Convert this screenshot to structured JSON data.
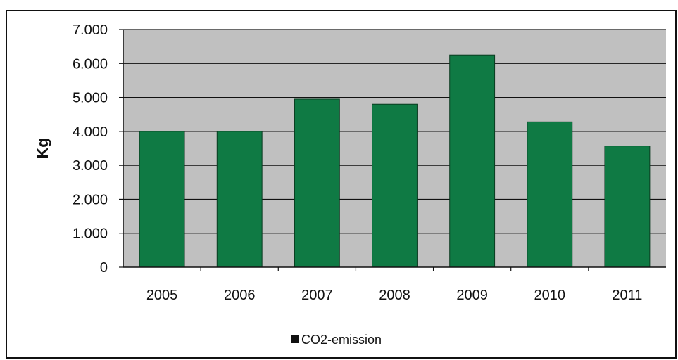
{
  "chart_data": {
    "type": "bar",
    "title": "",
    "xlabel": "",
    "ylabel": "Kg",
    "categories": [
      "2005",
      "2006",
      "2007",
      "2008",
      "2009",
      "2010",
      "2011"
    ],
    "series": [
      {
        "name": "CO2-emission",
        "values": [
          4000,
          4000,
          4950,
          4800,
          6250,
          4280,
          3570
        ]
      }
    ],
    "ylim": [
      0,
      7000
    ],
    "yticks": [
      0,
      1000,
      2000,
      3000,
      4000,
      5000,
      6000,
      7000
    ],
    "ytick_labels": [
      "0",
      "1.000",
      "2.000",
      "3.000",
      "4.000",
      "5.000",
      "6.000",
      "7.000"
    ],
    "grid": true,
    "legend_position": "bottom",
    "colors": {
      "bar": "#0f7a44",
      "bar_stroke": "#0a3b20",
      "plot_bg": "#c0c0c0",
      "grid": "#111111"
    }
  }
}
